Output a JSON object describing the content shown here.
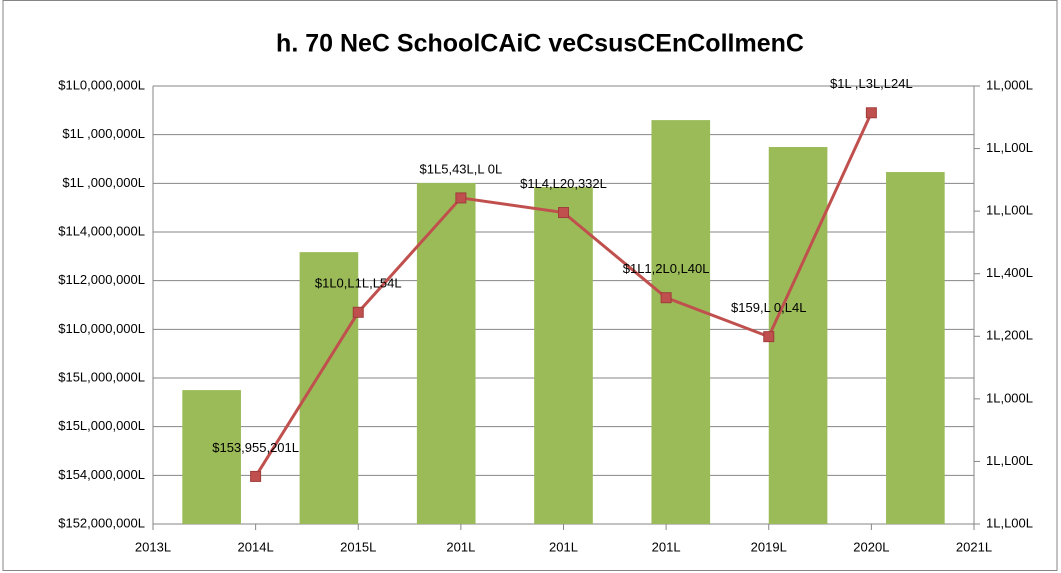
{
  "chart_data": {
    "type": "bar-line",
    "title": "h. 70 NeC SchoolCAiC veCsusCEnCollmenC",
    "xlim": [
      2013,
      2021
    ],
    "xticks": [
      {
        "value": 2013,
        "label": "2013L"
      },
      {
        "value": 2014,
        "label": "2014L"
      },
      {
        "value": 2015,
        "label": "2015L"
      },
      {
        "value": 2016,
        "label": "201L"
      },
      {
        "value": 2017,
        "label": "201L"
      },
      {
        "value": 2018,
        "label": "201L"
      },
      {
        "value": 2019,
        "label": "2019L"
      },
      {
        "value": 2020,
        "label": "2020L"
      },
      {
        "value": 2021,
        "label": "2021L"
      }
    ],
    "ylim": [
      152000000,
      170000000
    ],
    "yticks": [
      {
        "value": 152000000,
        "label": "$152,000,000L"
      },
      {
        "value": 154000000,
        "label": "$154,000,000L"
      },
      {
        "value": 156000000,
        "label": "$15L,000,000L"
      },
      {
        "value": 158000000,
        "label": "$15L,000,000L"
      },
      {
        "value": 160000000,
        "label": "$1L0,000,000L"
      },
      {
        "value": 162000000,
        "label": "$1L2,000,000L"
      },
      {
        "value": 164000000,
        "label": "$1L4,000,000L"
      },
      {
        "value": 166000000,
        "label": "$1L ,000,000L"
      },
      {
        "value": 168000000,
        "label": "$1L ,000,000L"
      },
      {
        "value": 170000000,
        "label": "$1L0,000,000L"
      }
    ],
    "y2lim": [
      16600,
      18000
    ],
    "y2ticks": [
      {
        "value": 16600,
        "label": "1L,L00L"
      },
      {
        "value": 16800,
        "label": "1L,L00L"
      },
      {
        "value": 17000,
        "label": "1L,000L"
      },
      {
        "value": 17200,
        "label": "1L,200L"
      },
      {
        "value": 17400,
        "label": "1L,400L"
      },
      {
        "value": 17600,
        "label": "1L,L00L"
      },
      {
        "value": 17800,
        "label": "1L,L00L"
      },
      {
        "value": 18000,
        "label": "1L,000L"
      }
    ],
    "grid": true,
    "series": [
      {
        "type": "bar",
        "axis": "y2",
        "color": "#9bbb59",
        "values": [
          17028,
          17469,
          17690,
          17677,
          17891,
          17805,
          17725
        ]
      },
      {
        "type": "line",
        "color": "#c0504d",
        "x": [
          2014,
          2015,
          2016,
          2017,
          2018,
          2019,
          2020
        ],
        "values": [
          153955201,
          160700000,
          165400000,
          164800000,
          161300000,
          159700000,
          168900000
        ],
        "value_labels": [
          "$153,955,201L",
          "$1L0,L1L,L54L",
          "$1L5,43L,L 0L",
          "$1L4,L20,332L",
          "$1L1,2L0,L40L",
          "$159,L 0,L4L",
          "$1L ,L3L,L24L"
        ]
      }
    ]
  }
}
